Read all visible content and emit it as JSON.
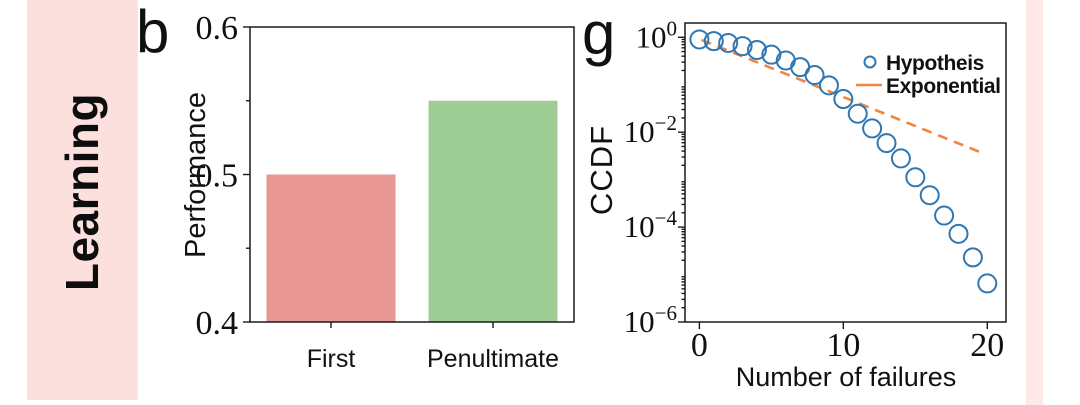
{
  "page": {
    "background": "#ffffff"
  },
  "sidebar": {
    "label": "Learning",
    "band_color": "#fce0de",
    "text_color": "#0d0d0d"
  },
  "accent_strip": {
    "color": "#fee9e7"
  },
  "panels": {
    "b_label": "b",
    "g_label": "g"
  },
  "chart_data": [
    {
      "type": "bar",
      "panel": "b",
      "categories": [
        "First",
        "Penultimate"
      ],
      "values": [
        0.5,
        0.55
      ],
      "bar_colors": [
        "#e99792",
        "#9ecd96"
      ],
      "title": "",
      "xlabel": "",
      "ylabel": "Performance",
      "ylim": [
        0.4,
        0.6
      ],
      "yticks": [
        0.4,
        0.5,
        0.6
      ],
      "ytick_labels": [
        "0.4",
        "0.5",
        "0.6"
      ],
      "yticks_minor": [
        0.45,
        0.55
      ],
      "grid": false
    },
    {
      "type": "scatter",
      "panel": "g",
      "title": "",
      "xlabel": "Number of failures",
      "ylabel": "CCDF",
      "xscale": "linear",
      "yscale": "log",
      "xlim": [
        -1,
        21.3
      ],
      "ylim": [
        1e-06,
        2
      ],
      "xticks": [
        0,
        10,
        20
      ],
      "xtick_labels": [
        "0",
        "10",
        "20"
      ],
      "ytick_exponents": [
        0,
        -2,
        -4,
        -6
      ],
      "grid": false,
      "legend_position": "upper right",
      "series": [
        {
          "name": "Hypotheis",
          "type": "scatter",
          "marker": "circle",
          "color": "#3077b2",
          "x": [
            0,
            1,
            2,
            3,
            4,
            5,
            6,
            7,
            8,
            9,
            10,
            11,
            12,
            13,
            14,
            15,
            16,
            17,
            18,
            19,
            20
          ],
          "y": [
            0.9,
            0.83,
            0.76,
            0.65,
            0.54,
            0.43,
            0.325,
            0.235,
            0.16,
            0.097,
            0.05,
            0.0245,
            0.012,
            0.0059,
            0.0028,
            0.00112,
            0.00047,
            0.000175,
            7.2e-05,
            2.3e-05,
            6.5e-06
          ]
        },
        {
          "name": "Exponential",
          "type": "line",
          "style": "dashed",
          "color": "#f08440",
          "x": [
            0.15,
            19.8
          ],
          "y": [
            0.88,
            0.0035
          ]
        }
      ]
    }
  ]
}
